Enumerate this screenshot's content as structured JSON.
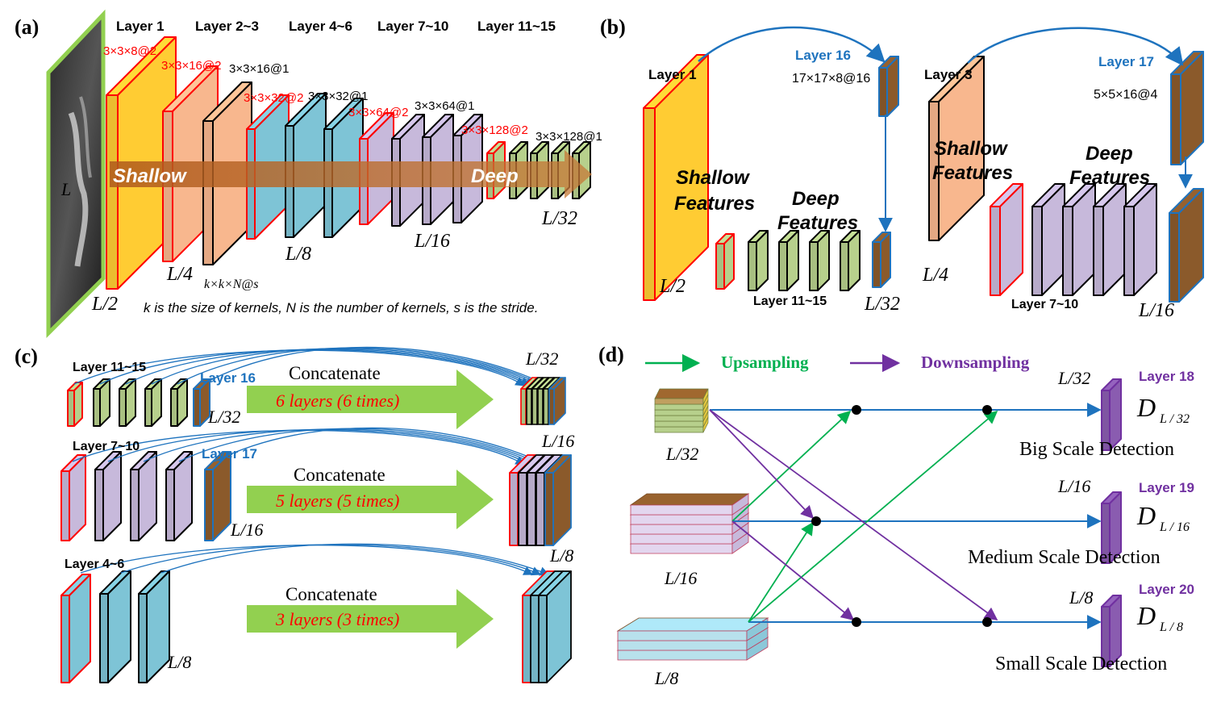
{
  "colors": {
    "yellow": "#FFCC33",
    "orange": "#F8B78E",
    "cyan": "#7EC4D6",
    "lavender": "#C7B9DB",
    "green": "#B7D08C",
    "brown": "#8B5A2B",
    "purple": "#7030A0",
    "red": "#FF0000",
    "blue": "#1E73BE",
    "arrowGreen": "#00B050",
    "bigArrow": "#92D050"
  },
  "panel_a": {
    "label": "(a)",
    "headers": [
      "Layer 1",
      "Layer 2~3",
      "Layer 4~6",
      "Layer 7~10",
      "Layer 11~15"
    ],
    "kernels": [
      "3×3×8@2",
      "3×3×16@2",
      "3×3×16@1",
      "3×3×32@2",
      "3×3×32@1",
      "3×3×64@2",
      "3×3×64@1",
      "3×3×128@2",
      "3×3×128@1"
    ],
    "input_label": "L",
    "scales": [
      "L/2",
      "L/4",
      "L/8",
      "L/16",
      "L/32"
    ],
    "legend_symbol": "k×k×N@s",
    "arrow_left": "Shallow",
    "arrow_right": "Deep",
    "caption": "k is the size of kernels, N is the number of kernels, s is the stride."
  },
  "panel_b": {
    "label": "(b)",
    "layer1": "Layer 1",
    "layer16": "Layer 16",
    "layer16_kernel": "17×17×8@16",
    "shallow": [
      "Shallow",
      "Features"
    ],
    "deep": [
      "Deep",
      "Features"
    ],
    "range1": "Layer 11~15",
    "scale_l2": "L/2",
    "scale_l32": "L/32",
    "layer3": "Layer 3",
    "layer17": "Layer 17",
    "layer17_kernel": "5×5×16@4",
    "range2": "Layer 7~10",
    "scale_l4": "L/4",
    "scale_l16": "L/16"
  },
  "panel_c": {
    "label": "(c)",
    "concat": "Concatenate",
    "rows": [
      {
        "range": "Layer 11~15",
        "special": "Layer 16",
        "scale": "L/32",
        "out_scale": "L/32",
        "desc": "6 layers (6 times)"
      },
      {
        "range": "Layer 7~10",
        "special": "Layer 17",
        "scale": "L/16",
        "out_scale": "L/16",
        "desc": "5 layers (5 times)"
      },
      {
        "range": "Layer 4~6",
        "special": "",
        "scale": "L/8",
        "out_scale": "L/8",
        "desc": "3 layers (3 times)"
      }
    ]
  },
  "panel_d": {
    "label": "(d)",
    "legend_up": "Upsampling",
    "legend_down": "Downsampling",
    "inputs": [
      "L/32",
      "L/16",
      "L/8"
    ],
    "outputs": [
      {
        "scale": "L/32",
        "layer": "Layer 18",
        "d_main": "D",
        "d_sub": "L / 32",
        "title": "Big Scale Detection"
      },
      {
        "scale": "L/16",
        "layer": "Layer 19",
        "d_main": "D",
        "d_sub": "L / 16",
        "title": "Medium Scale Detection"
      },
      {
        "scale": "L/8",
        "layer": "Layer 20",
        "d_main": "D",
        "d_sub": "L / 8",
        "title": "Small Scale Detection"
      }
    ]
  }
}
